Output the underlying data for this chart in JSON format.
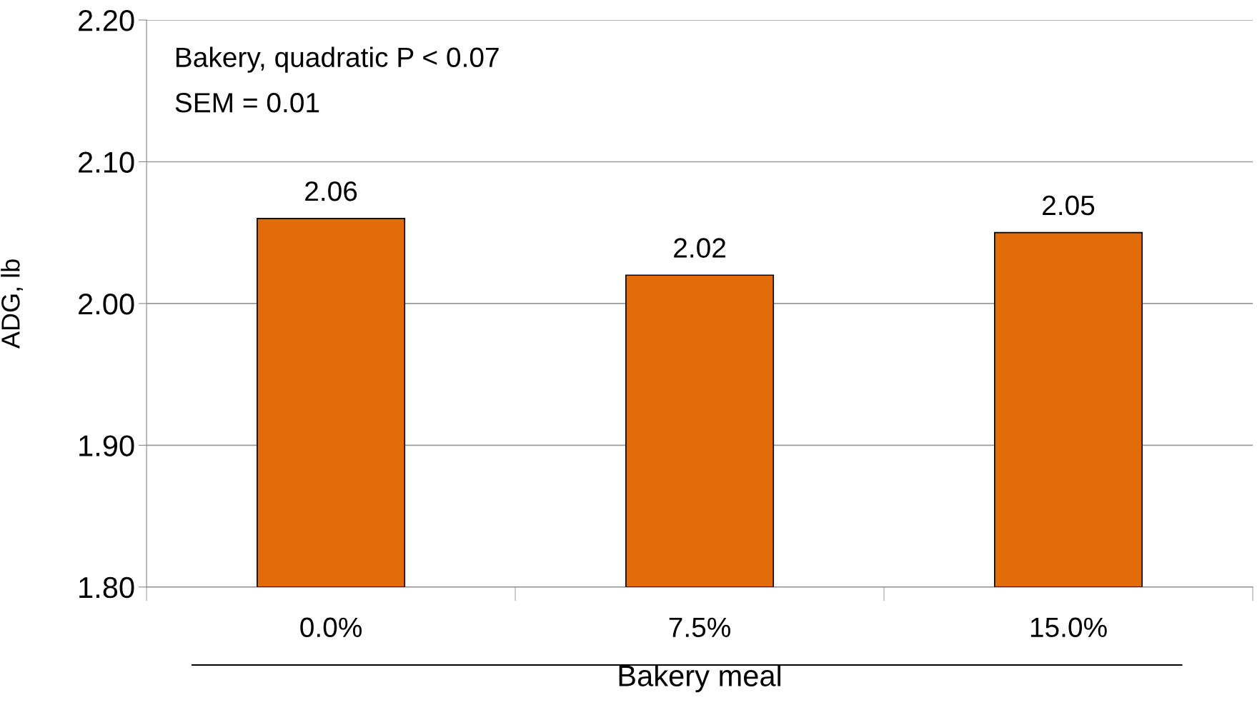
{
  "chart_data": {
    "type": "bar",
    "xlabel": "Bakery meal",
    "ylabel": "ADG, lb",
    "categories": [
      "0.0%",
      "7.5%",
      "15.0%"
    ],
    "values": [
      2.06,
      2.02,
      2.05
    ],
    "color": "#e36c0a",
    "data_labels": true,
    "ylim": [
      1.8,
      2.2
    ],
    "yticks": [
      {
        "value": 1.8,
        "label": "1.80"
      },
      {
        "value": 1.9,
        "label": "1.90"
      },
      {
        "value": 2.0,
        "label": "2.00"
      },
      {
        "value": 2.1,
        "label": "2.10"
      },
      {
        "value": 2.2,
        "label": "2.20"
      }
    ],
    "grid": "y",
    "annotations": [
      "Bakery, quadratic P < 0.07",
      "SEM = 0.01"
    ]
  }
}
